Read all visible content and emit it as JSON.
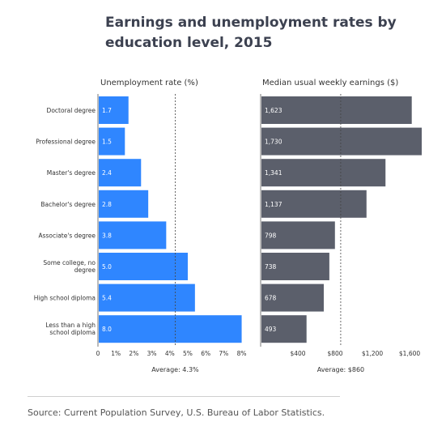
{
  "title": "Earnings and unemployment rates by education level, 2015",
  "source": "Source: Current Population Survey, U.S. Bureau of Labor Statistics.",
  "chart_data": [
    {
      "type": "bar",
      "orientation": "horizontal",
      "title": "Unemployment rate (%)",
      "categories": [
        "Doctoral degree",
        "Professional degree",
        "Master's degree",
        "Bachelor's degree",
        "Associate's degree",
        "Some college, no degree",
        "High school diploma",
        "Less than a high school diploma"
      ],
      "values": [
        1.7,
        1.5,
        2.4,
        2.8,
        3.8,
        5.0,
        5.4,
        8.0
      ],
      "data_labels": [
        "1.7",
        "1.5",
        "2.4",
        "2.8",
        "3.8",
        "5.0",
        "5.4",
        "8.0"
      ],
      "xlim": [
        0,
        8.2
      ],
      "ticks": [
        0,
        1,
        2,
        3,
        4,
        5,
        6,
        7,
        8
      ],
      "tick_labels": [
        "0",
        "1%",
        "2%",
        "3%",
        "4%",
        "5%",
        "6%",
        "7%",
        "8%"
      ],
      "reference_value": 4.3,
      "reference_label": "Average: 4.3%",
      "bar_color": "#2f86ff"
    },
    {
      "type": "bar",
      "orientation": "horizontal",
      "title": "Median usual weekly earnings ($)",
      "categories": [
        "Doctoral degree",
        "Professional degree",
        "Master's degree",
        "Bachelor's degree",
        "Associate's degree",
        "Some college, no degree",
        "High school diploma",
        "Less than a high school diploma"
      ],
      "values": [
        1623,
        1730,
        1341,
        1137,
        798,
        738,
        678,
        493
      ],
      "data_labels": [
        "1,623",
        "1,730",
        "1,341",
        "1,137",
        "798",
        "738",
        "678",
        "493"
      ],
      "xlim": [
        0,
        1730
      ],
      "ticks": [
        400,
        800,
        1200,
        1600
      ],
      "tick_labels": [
        "$400",
        "$800",
        "$1,200",
        "$1,600"
      ],
      "reference_value": 860,
      "reference_label": "Average: $860",
      "bar_color": "#5b5f6b"
    }
  ]
}
